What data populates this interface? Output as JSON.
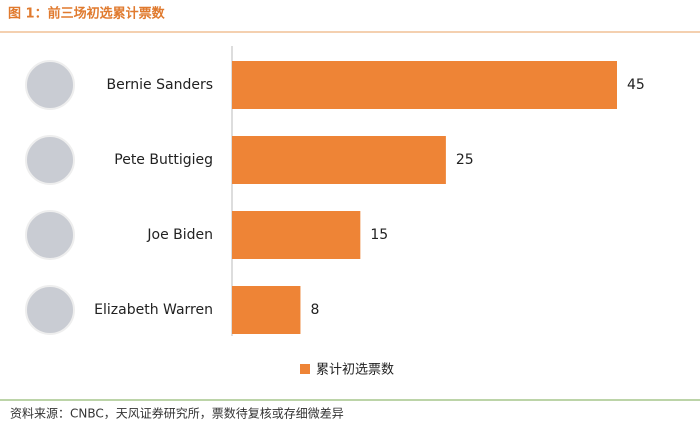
{
  "chart_data": {
    "type": "hbar",
    "title": "图 1：前三场初选累计票数",
    "categories": [
      "Bernie Sanders",
      "Pete Buttigieg",
      "Joe Biden",
      "Elizabeth Warren"
    ],
    "series": [
      {
        "name": "累计初选票数",
        "color": "#ee8436",
        "values": [
          45,
          25,
          15,
          8
        ]
      }
    ],
    "source": "资料来源：CNBC，天风证券研究所，票数待复核或存细微差异"
  }
}
